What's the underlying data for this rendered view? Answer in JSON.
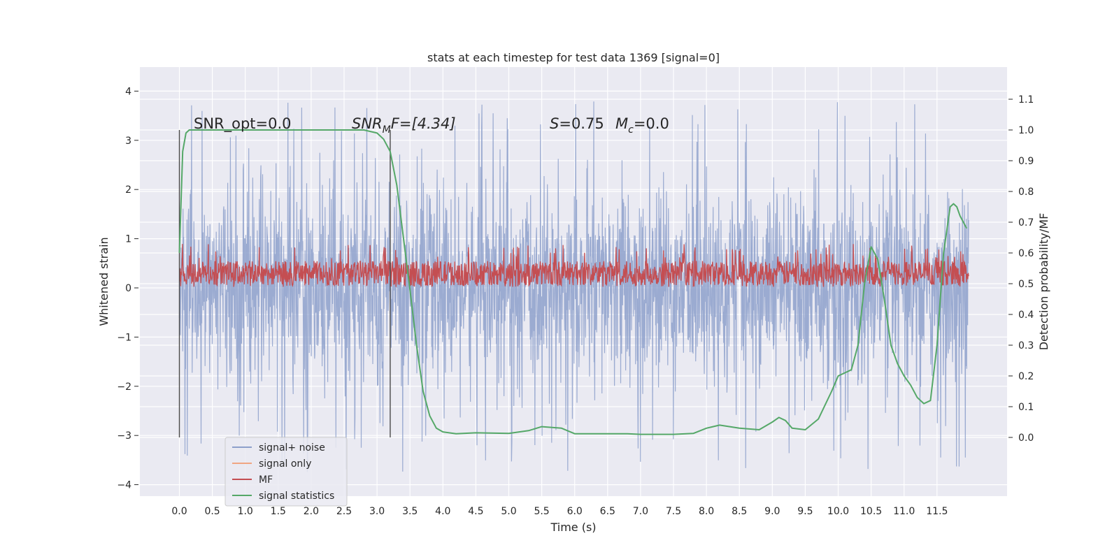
{
  "chart_data": {
    "type": "line",
    "title": "stats at each timestep for test data 1369 [signal=0]",
    "xlabel": "Time (s)",
    "ylabel": "Whitened strain",
    "ylabel_right": "Detection probability/MF",
    "xlim": [
      -0.6,
      12.6
    ],
    "ylim": [
      -4.3,
      4.45
    ],
    "ylim_right": [
      -0.2,
      1.2
    ],
    "x_ticks": [
      "0.0",
      "0.5",
      "1.0",
      "1.5",
      "2.0",
      "2.5",
      "3.0",
      "3.5",
      "4.0",
      "4.5",
      "5.0",
      "5.5",
      "6.0",
      "6.5",
      "7.0",
      "7.5",
      "8.0",
      "8.5",
      "9.0",
      "9.5",
      "10.0",
      "10.5",
      "11.0",
      "11.5"
    ],
    "y_ticks": [
      4,
      3,
      2,
      1,
      0,
      -1,
      -2,
      -3,
      -4
    ],
    "y_tick_labels": [
      "4",
      "3",
      "2",
      "1",
      "0",
      "−1",
      "−2",
      "−3",
      "−4"
    ],
    "y_right_ticks": [
      1.1,
      1.0,
      0.9,
      0.8,
      0.7,
      0.6,
      0.5,
      0.4,
      0.3,
      0.2,
      0.1,
      0.0
    ],
    "y_right_tick_labels": [
      "1.1",
      "1.0",
      "0.9",
      "0.8",
      "0.7",
      "0.6",
      "0.5",
      "0.4",
      "0.3",
      "0.2",
      "0.1",
      "0.0"
    ],
    "grid": true,
    "legend_position": "lower-left",
    "annotations": {
      "snr_opt": "SNR_opt=0.0",
      "snr_mf_prefix": "SNR",
      "snr_mf_sub": "M",
      "snr_mf_suffix": "F=[4.34]",
      "s_prefix": "S",
      "s_value": "=0.75",
      "mc_prefix": "M",
      "mc_sub": "c",
      "mc_value": "=0.0"
    },
    "vlines": [
      0.0,
      3.2
    ],
    "series": [
      {
        "name": "signal+ noise",
        "color": "#8da0cb",
        "kind": "noise",
        "range_x": [
          0.0,
          11.98
        ],
        "typical_band": [
          -1.8,
          1.8
        ],
        "extremes": [
          -3.9,
          4.1
        ]
      },
      {
        "name": "signal only",
        "color": "#f0a582",
        "kind": "flat",
        "values": []
      },
      {
        "name": "MF",
        "color": "#c44e52",
        "kind": "noise",
        "range_x": [
          0.0,
          11.98
        ],
        "typical_band": [
          0.05,
          0.6
        ],
        "extremes": [
          0.0,
          0.95
        ]
      },
      {
        "name": "signal statistics",
        "color": "#55a868",
        "kind": "line",
        "x": [
          0.0,
          0.05,
          0.1,
          0.15,
          0.2,
          0.3,
          0.5,
          1.0,
          2.0,
          2.5,
          2.8,
          3.0,
          3.1,
          3.2,
          3.3,
          3.4,
          3.5,
          3.6,
          3.7,
          3.8,
          3.9,
          4.0,
          4.2,
          4.5,
          5.0,
          5.3,
          5.5,
          5.8,
          6.0,
          6.3,
          6.5,
          6.8,
          7.0,
          7.5,
          7.8,
          8.0,
          8.2,
          8.5,
          8.8,
          9.0,
          9.1,
          9.2,
          9.3,
          9.5,
          9.7,
          9.9,
          10.0,
          10.1,
          10.2,
          10.3,
          10.4,
          10.5,
          10.6,
          10.7,
          10.8,
          10.9,
          11.0,
          11.1,
          11.2,
          11.3,
          11.4,
          11.5,
          11.6,
          11.7,
          11.75,
          11.8,
          11.85,
          11.9,
          11.95
        ],
        "y": [
          0.6,
          0.93,
          0.99,
          1.0,
          1.0,
          1.0,
          1.0,
          1.0,
          1.0,
          1.0,
          1.0,
          0.99,
          0.97,
          0.93,
          0.82,
          0.65,
          0.48,
          0.3,
          0.15,
          0.07,
          0.03,
          0.018,
          0.012,
          0.015,
          0.013,
          0.022,
          0.035,
          0.03,
          0.012,
          0.012,
          0.012,
          0.012,
          0.01,
          0.01,
          0.013,
          0.03,
          0.04,
          0.03,
          0.025,
          0.05,
          0.065,
          0.055,
          0.03,
          0.025,
          0.06,
          0.15,
          0.2,
          0.21,
          0.22,
          0.3,
          0.5,
          0.62,
          0.58,
          0.45,
          0.3,
          0.24,
          0.2,
          0.17,
          0.13,
          0.11,
          0.12,
          0.3,
          0.6,
          0.75,
          0.76,
          0.75,
          0.72,
          0.7,
          0.68
        ]
      }
    ]
  }
}
